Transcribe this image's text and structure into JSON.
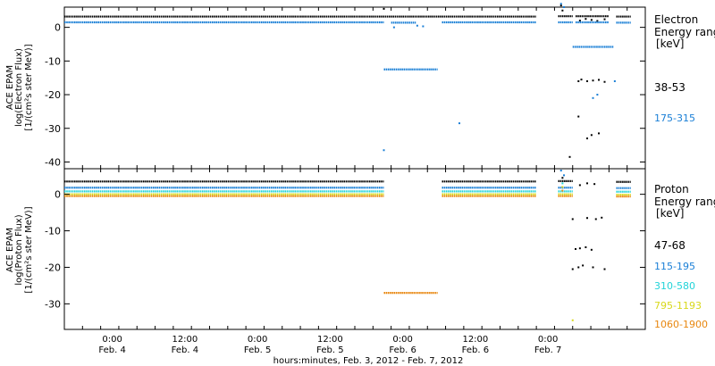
{
  "chart_data": [
    {
      "type": "scatter",
      "title": "",
      "ylabel_lines": [
        "ACE EPAM",
        "log(Electron Flux)",
        "[1/(cm²s ster MeV)]"
      ],
      "ylim": [
        -42,
        6
      ],
      "yticks": [
        0,
        -10,
        -20,
        -30,
        -40
      ],
      "legend_title": [
        "Electron",
        "Energy range",
        "[keV]"
      ],
      "series": [
        {
          "name": "38-53",
          "color": "#000000",
          "segments": [
            {
              "x": [
                0.0,
                3.25
              ],
              "y": 3.2
            },
            {
              "x": [
                3.4,
                3.5
              ],
              "y": 3.3
            },
            {
              "x": [
                3.52,
                3.75
              ],
              "y": 3.3
            },
            {
              "x": [
                3.8,
                3.9
              ],
              "y": 3.2
            }
          ],
          "points": [
            {
              "x": 2.2,
              "y": 5.5
            },
            {
              "x": 3.42,
              "y": 6.5
            },
            {
              "x": 3.43,
              "y": 5.0
            },
            {
              "x": 3.55,
              "y": 2.0
            },
            {
              "x": 3.59,
              "y": 2.5
            },
            {
              "x": 3.63,
              "y": 2.2
            },
            {
              "x": 3.67,
              "y": 1.9
            },
            {
              "x": 3.72,
              "y": 2.4
            },
            {
              "x": 3.48,
              "y": -38.5
            },
            {
              "x": 3.54,
              "y": -26.5
            },
            {
              "x": 3.6,
              "y": -33.0
            },
            {
              "x": 3.63,
              "y": -32.0
            },
            {
              "x": 3.68,
              "y": -31.5
            },
            {
              "x": 3.54,
              "y": -16.0
            },
            {
              "x": 3.56,
              "y": -15.5
            },
            {
              "x": 3.6,
              "y": -16.0
            },
            {
              "x": 3.64,
              "y": -15.8
            },
            {
              "x": 3.68,
              "y": -15.6
            },
            {
              "x": 3.72,
              "y": -16.2
            }
          ]
        },
        {
          "name": "175-315",
          "color": "#1a7fd6",
          "segments": [
            {
              "x": [
                0.0,
                2.2
              ],
              "y": 1.5
            },
            {
              "x": [
                2.25,
                2.42
              ],
              "y": 1.4
            },
            {
              "x": [
                2.6,
                3.25
              ],
              "y": 1.5
            },
            {
              "x": [
                3.4,
                3.5
              ],
              "y": 1.5
            },
            {
              "x": [
                3.52,
                3.75
              ],
              "y": 1.5
            },
            {
              "x": [
                3.8,
                3.9
              ],
              "y": 1.4
            },
            {
              "x": [
                2.2,
                2.57
              ],
              "y": -12.5
            },
            {
              "x": [
                3.5,
                3.78
              ],
              "y": -5.8
            }
          ],
          "points": [
            {
              "x": 2.2,
              "y": -36.5
            },
            {
              "x": 2.72,
              "y": -28.5
            },
            {
              "x": 2.27,
              "y": 0.0
            },
            {
              "x": 2.43,
              "y": 0.5
            },
            {
              "x": 2.47,
              "y": 0.3
            },
            {
              "x": 3.42,
              "y": 7.0
            },
            {
              "x": 3.44,
              "y": 6.0
            },
            {
              "x": 3.64,
              "y": -21.0
            },
            {
              "x": 3.67,
              "y": -20.0
            },
            {
              "x": 3.79,
              "y": -16.0
            }
          ]
        }
      ]
    },
    {
      "type": "scatter",
      "title": "",
      "ylabel_lines": [
        "ACE EPAM",
        "log(Proton Flux)",
        "[1/(cm²s ster MeV)]"
      ],
      "ylim": [
        -37,
        7
      ],
      "yticks": [
        0,
        -10,
        -20,
        -30
      ],
      "legend_title": [
        "Proton",
        "Energy range",
        "[keV]"
      ],
      "series": [
        {
          "name": "47-68",
          "color": "#000000",
          "segments": [
            {
              "x": [
                0.0,
                2.2
              ],
              "y": 3.5
            },
            {
              "x": [
                2.6,
                3.25
              ],
              "y": 3.5
            },
            {
              "x": [
                3.4,
                3.5
              ],
              "y": 3.6
            },
            {
              "x": [
                3.8,
                3.9
              ],
              "y": 3.4
            }
          ],
          "points": [
            {
              "x": 3.43,
              "y": 4.5
            },
            {
              "x": 3.55,
              "y": 2.5
            },
            {
              "x": 3.6,
              "y": 3.0
            },
            {
              "x": 3.65,
              "y": 2.8
            },
            {
              "x": 3.5,
              "y": -20.5
            },
            {
              "x": 3.54,
              "y": -20.0
            },
            {
              "x": 3.57,
              "y": -19.5
            },
            {
              "x": 3.64,
              "y": -20.0
            },
            {
              "x": 3.72,
              "y": -20.5
            },
            {
              "x": 3.52,
              "y": -15.0
            },
            {
              "x": 3.55,
              "y": -14.8
            },
            {
              "x": 3.59,
              "y": -14.5
            },
            {
              "x": 3.63,
              "y": -15.2
            },
            {
              "x": 3.5,
              "y": -6.8
            },
            {
              "x": 3.6,
              "y": -6.5
            },
            {
              "x": 3.66,
              "y": -6.8
            },
            {
              "x": 3.7,
              "y": -6.4
            }
          ]
        },
        {
          "name": "115-195",
          "color": "#1a7fd6",
          "segments": [
            {
              "x": [
                0.0,
                2.2
              ],
              "y": 1.8
            },
            {
              "x": [
                2.6,
                3.25
              ],
              "y": 1.8
            },
            {
              "x": [
                3.4,
                3.5
              ],
              "y": 1.8
            },
            {
              "x": [
                3.8,
                3.9
              ],
              "y": 1.7
            }
          ],
          "points": [
            {
              "x": 3.42,
              "y": 6.5
            },
            {
              "x": 3.44,
              "y": 5.2
            }
          ]
        },
        {
          "name": "310-580",
          "color": "#22d3d8",
          "segments": [
            {
              "x": [
                0.0,
                2.2
              ],
              "y": 0.8
            },
            {
              "x": [
                2.6,
                3.25
              ],
              "y": 0.8
            },
            {
              "x": [
                3.4,
                3.5
              ],
              "y": 0.8
            },
            {
              "x": [
                3.8,
                3.9
              ],
              "y": 0.7
            }
          ],
          "points": [
            {
              "x": 3.43,
              "y": 3.0
            }
          ]
        },
        {
          "name": "795-1193",
          "color": "#d8d81a",
          "segments": [
            {
              "x": [
                0.0,
                2.2
              ],
              "y": 0.0
            },
            {
              "x": [
                2.6,
                3.25
              ],
              "y": 0.0
            },
            {
              "x": [
                3.4,
                3.5
              ],
              "y": 0.0
            },
            {
              "x": [
                3.8,
                3.9
              ],
              "y": -0.1
            }
          ],
          "points": [
            {
              "x": 3.43,
              "y": 2.0
            },
            {
              "x": 3.5,
              "y": -34.5
            }
          ]
        },
        {
          "name": "1060-1900",
          "color": "#e8870f",
          "segments": [
            {
              "x": [
                0.0,
                2.2
              ],
              "y": -0.5
            },
            {
              "x": [
                2.6,
                3.25
              ],
              "y": -0.5
            },
            {
              "x": [
                3.4,
                3.5
              ],
              "y": -0.5
            },
            {
              "x": [
                3.8,
                3.9
              ],
              "y": -0.6
            },
            {
              "x": [
                2.2,
                2.57
              ],
              "y": -27.0
            }
          ],
          "points": [
            {
              "x": 3.43,
              "y": 1.0
            }
          ]
        }
      ]
    }
  ],
  "x_axis": {
    "xlim": [
      0,
      4
    ],
    "xlabel": "hours:minutes, Feb. 3, 2012 - Feb. 7, 2012",
    "major_ticks": [
      {
        "x": 0.33,
        "time": "0:00",
        "date": "Feb. 4"
      },
      {
        "x": 0.83,
        "time": "12:00",
        "date": "Feb. 4"
      },
      {
        "x": 1.33,
        "time": "0:00",
        "date": "Feb. 5"
      },
      {
        "x": 1.83,
        "time": "12:00",
        "date": "Feb. 5"
      },
      {
        "x": 2.33,
        "time": "0:00",
        "date": "Feb. 6"
      },
      {
        "x": 2.83,
        "time": "12:00",
        "date": "Feb. 6"
      },
      {
        "x": 3.33,
        "time": "0:00",
        "date": "Feb. 7"
      }
    ]
  }
}
